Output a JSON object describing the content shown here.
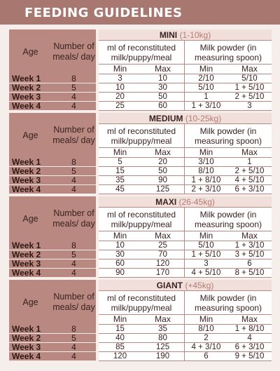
{
  "title": "FEEDING GUIDELINES",
  "headers": {
    "age": "Age",
    "meals": "Number of meals/ day",
    "ml": "ml of reconstituted milk/puppy/meal",
    "powder": "Milk powder (in measuring spoon)",
    "min": "Min",
    "max": "Max"
  },
  "tables": [
    {
      "size": "MINI",
      "range": "(1-10kg)",
      "rows": [
        {
          "week": "Week 1",
          "meals": "8",
          "ml_min": "3",
          "ml_max": "10",
          "pw_min": "2/10",
          "pw_max": "5/10"
        },
        {
          "week": "Week 2",
          "meals": "5",
          "ml_min": "10",
          "ml_max": "30",
          "pw_min": "5/10",
          "pw_max": "1 + 5/10"
        },
        {
          "week": "Week 3",
          "meals": "4",
          "ml_min": "20",
          "ml_max": "50",
          "pw_min": "1",
          "pw_max": "2 + 5/10"
        },
        {
          "week": "Week 4",
          "meals": "4",
          "ml_min": "25",
          "ml_max": "60",
          "pw_min": "1 + 3/10",
          "pw_max": "3"
        }
      ]
    },
    {
      "size": "MEDIUM",
      "range": "(10-25kg)",
      "rows": [
        {
          "week": "Week 1",
          "meals": "8",
          "ml_min": "5",
          "ml_max": "20",
          "pw_min": "3/10",
          "pw_max": "1"
        },
        {
          "week": "Week 2",
          "meals": "5",
          "ml_min": "15",
          "ml_max": "50",
          "pw_min": "8/10",
          "pw_max": "2 + 5/10"
        },
        {
          "week": "Week 3",
          "meals": "4",
          "ml_min": "35",
          "ml_max": "90",
          "pw_min": "1 + 8/10",
          "pw_max": "4 + 5/10"
        },
        {
          "week": "Week 4",
          "meals": "4",
          "ml_min": "45",
          "ml_max": "125",
          "pw_min": "2 + 3/10",
          "pw_max": "6 + 3/10"
        }
      ]
    },
    {
      "size": "MAXI",
      "range": "(26-45kg)",
      "rows": [
        {
          "week": "Week 1",
          "meals": "8",
          "ml_min": "10",
          "ml_max": "25",
          "pw_min": "5/10",
          "pw_max": "1 + 3/10"
        },
        {
          "week": "Week 2",
          "meals": "5",
          "ml_min": "30",
          "ml_max": "70",
          "pw_min": "1 + 5/10",
          "pw_max": "3 + 5/10"
        },
        {
          "week": "Week 3",
          "meals": "4",
          "ml_min": "60",
          "ml_max": "120",
          "pw_min": "3",
          "pw_max": "6"
        },
        {
          "week": "Week 4",
          "meals": "4",
          "ml_min": "90",
          "ml_max": "170",
          "pw_min": "4 + 5/10",
          "pw_max": "8 + 5/10"
        }
      ]
    },
    {
      "size": "GIANT",
      "range": "(+45kg)",
      "rows": [
        {
          "week": "Week 1",
          "meals": "8",
          "ml_min": "15",
          "ml_max": "35",
          "pw_min": "8/10",
          "pw_max": "1 + 8/10"
        },
        {
          "week": "Week 2",
          "meals": "5",
          "ml_min": "40",
          "ml_max": "80",
          "pw_min": "2",
          "pw_max": "4"
        },
        {
          "week": "Week 3",
          "meals": "4",
          "ml_min": "85",
          "ml_max": "125",
          "pw_min": "4 + 3/10",
          "pw_max": "6 + 3/10"
        },
        {
          "week": "Week 4",
          "meals": "4",
          "ml_min": "120",
          "ml_max": "190",
          "pw_min": "6",
          "pw_max": "9 + 5/10"
        }
      ]
    }
  ]
}
